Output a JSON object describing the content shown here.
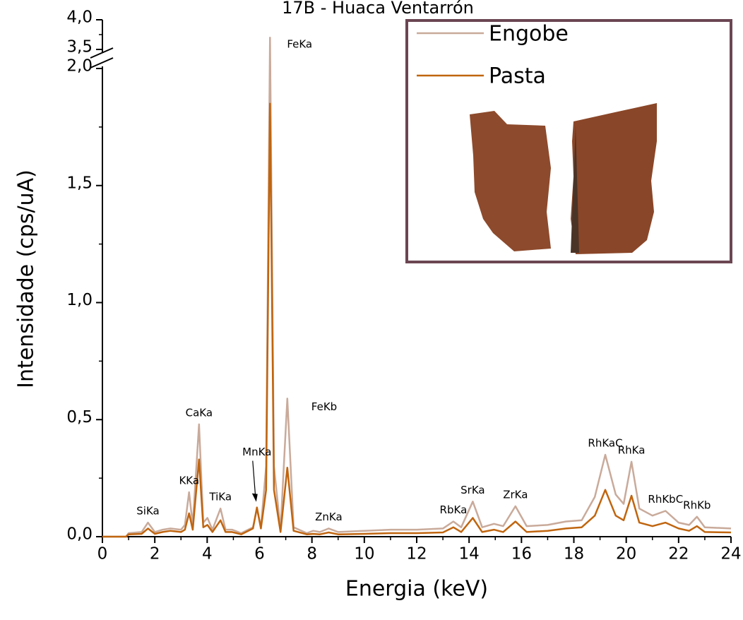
{
  "chart_data": {
    "type": "line",
    "title": "17B - Huaca Ventarrón",
    "x_label": "Energia (keV)",
    "y_label": "Intensidade (cps/uA)",
    "x": [
      0,
      0.9,
      1.0,
      1.5,
      1.74,
      2.0,
      2.3,
      2.6,
      3.0,
      3.15,
      3.31,
      3.45,
      3.69,
      3.85,
      4.01,
      4.2,
      4.51,
      4.7,
      4.95,
      5.3,
      5.75,
      5.9,
      6.05,
      6.25,
      6.4,
      6.55,
      6.8,
      7.06,
      7.3,
      7.8,
      8.05,
      8.3,
      8.64,
      9.0,
      10,
      11,
      12,
      13,
      13.4,
      13.7,
      14.14,
      14.5,
      14.95,
      15.3,
      15.77,
      16.2,
      17,
      17.7,
      18.3,
      18.8,
      19.2,
      19.6,
      19.9,
      20.2,
      20.5,
      21.0,
      21.5,
      22.0,
      22.4,
      22.7,
      23.0,
      24
    ],
    "series": [
      {
        "name": "Engobe",
        "color": "#c9aa9a",
        "values": [
          0,
          0,
          0.015,
          0.02,
          0.06,
          0.02,
          0.03,
          0.035,
          0.03,
          0.05,
          0.19,
          0.05,
          0.48,
          0.06,
          0.08,
          0.03,
          0.12,
          0.03,
          0.03,
          0.015,
          0.04,
          0.12,
          0.04,
          0.3,
          3.7,
          0.3,
          0.03,
          0.59,
          0.04,
          0.015,
          0.025,
          0.02,
          0.035,
          0.02,
          0.025,
          0.03,
          0.03,
          0.035,
          0.065,
          0.04,
          0.15,
          0.04,
          0.055,
          0.045,
          0.13,
          0.045,
          0.05,
          0.065,
          0.07,
          0.17,
          0.35,
          0.18,
          0.14,
          0.32,
          0.12,
          0.09,
          0.11,
          0.06,
          0.05,
          0.085,
          0.04,
          0.035
        ]
      },
      {
        "name": "Pasta",
        "color": "#c0650f",
        "values": [
          0,
          0,
          0.01,
          0.012,
          0.035,
          0.012,
          0.02,
          0.025,
          0.02,
          0.03,
          0.1,
          0.03,
          0.33,
          0.04,
          0.05,
          0.02,
          0.07,
          0.02,
          0.02,
          0.01,
          0.035,
          0.125,
          0.035,
          0.2,
          1.85,
          0.2,
          0.02,
          0.295,
          0.025,
          0.01,
          0.012,
          0.01,
          0.018,
          0.01,
          0.012,
          0.015,
          0.015,
          0.018,
          0.04,
          0.02,
          0.08,
          0.02,
          0.03,
          0.02,
          0.065,
          0.02,
          0.025,
          0.035,
          0.04,
          0.09,
          0.2,
          0.09,
          0.07,
          0.175,
          0.06,
          0.045,
          0.06,
          0.035,
          0.025,
          0.045,
          0.02,
          0.018
        ]
      }
    ],
    "xlim": [
      0,
      24
    ],
    "xticks": [
      0,
      2,
      4,
      6,
      8,
      10,
      12,
      14,
      16,
      18,
      20,
      22,
      24
    ],
    "ylim": [
      0,
      4.0
    ],
    "y_break": [
      2.0,
      3.5
    ],
    "yticks": [
      {
        "value": 0,
        "label": "0,0"
      },
      {
        "value": 0.5,
        "label": "0,5"
      },
      {
        "value": 1.0,
        "label": "1,0"
      },
      {
        "value": 1.5,
        "label": "1,5"
      },
      {
        "value": 2.0,
        "label": "2,0"
      },
      {
        "value": 3.5,
        "label": "3,5"
      },
      {
        "value": 4.0,
        "label": "4,0"
      }
    ],
    "annotations": [
      {
        "text": "SiKa",
        "x": 1.74
      },
      {
        "text": "KKa",
        "x": 3.31
      },
      {
        "text": "CaKa",
        "x": 3.69
      },
      {
        "text": "TiKa",
        "x": 4.51
      },
      {
        "text": "MnKa",
        "x": 5.9
      },
      {
        "text": "FeKa",
        "x": 6.4
      },
      {
        "text": "FeKb",
        "x": 7.06
      },
      {
        "text": "ZnKa",
        "x": 8.64
      },
      {
        "text": "RbKa",
        "x": 13.4
      },
      {
        "text": "SrKa",
        "x": 14.14
      },
      {
        "text": "ZrKa",
        "x": 15.77
      },
      {
        "text": "RhKaC",
        "x": 19.2
      },
      {
        "text": "RhKa",
        "x": 20.2
      },
      {
        "text": "RhKbC",
        "x": 21.5
      },
      {
        "text": "RhKb",
        "x": 22.7
      }
    ],
    "legend": "top-right"
  }
}
